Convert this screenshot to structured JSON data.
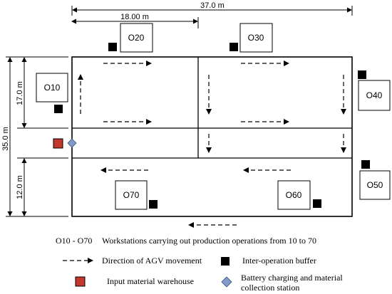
{
  "dimensions": {
    "total_width": "37.0 m",
    "partial_width": "18.00 m",
    "total_height": "35.0 m",
    "upper_height": "17.0 m",
    "lower_height": "12.0 m"
  },
  "workstations": {
    "o10": "O10",
    "o20": "O20",
    "o30": "O30",
    "o40": "O40",
    "o50": "O50",
    "o60": "O60",
    "o70": "O70"
  },
  "legend": {
    "workstations_key": "O10 - O70",
    "workstations_desc": "Workstations carrying out production operations from 10 to 70",
    "agv_movement": "Direction of AGV movement",
    "buffer": "Inter-operation buffer",
    "warehouse": "Input material warehouse",
    "charging_line1": "Battery charging and material",
    "charging_line2": "collection station"
  },
  "colors": {
    "buffer": "#000000",
    "warehouse": "#c0392b",
    "charging_station": "#7f9cc9",
    "line": "#000000"
  }
}
